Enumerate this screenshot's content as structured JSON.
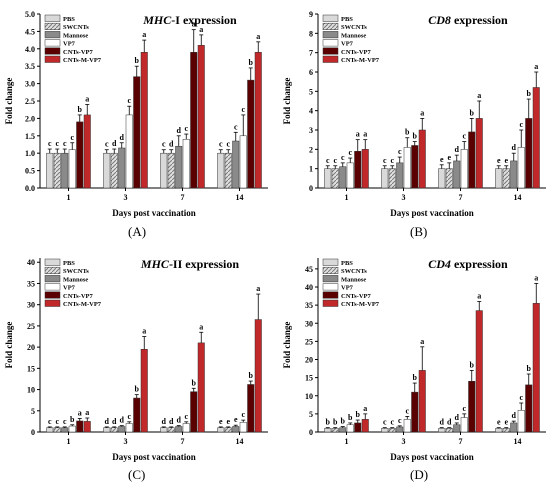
{
  "colors": {
    "PBS": "#d9d9d9",
    "SWCNTs": "#c8c8c8",
    "Mannose": "#8a8a8a",
    "VP7": "#ffffff",
    "CNTs-VP7": "#5a0000",
    "CNTs-M-VP7": "#c0282a",
    "CNTs-VP7_CD4": "#7a0000"
  },
  "legend_patterns": {
    "SWCNTs": "hatch"
  },
  "panels": [
    {
      "label": "(A)"
    },
    {
      "label": "(B)"
    },
    {
      "label": "(C)"
    },
    {
      "label": "(D)"
    }
  ],
  "chart_data": [
    {
      "type": "bar",
      "title_italic": "MHC",
      "title_rest": "-I expression",
      "xlabel": "Days post vaccination",
      "ylabel": "Fold change",
      "categories": [
        "1",
        "3",
        "7",
        "14"
      ],
      "ylim": [
        0,
        5
      ],
      "yticks": [
        "0.0",
        "0.5",
        "1.0",
        "1.5",
        "2.0",
        "2.5",
        "3.0",
        "3.5",
        "4.0",
        "4.5",
        "5.0"
      ],
      "legend_position": "top-left",
      "series": [
        {
          "name": "PBS",
          "values": [
            1.0,
            1.0,
            1.0,
            1.0
          ],
          "errors": [
            0.12,
            0.1,
            0.1,
            0.1
          ],
          "letters": [
            "c",
            "c",
            "c",
            "c"
          ]
        },
        {
          "name": "SWCNTs",
          "values": [
            1.0,
            1.0,
            1.0,
            1.0
          ],
          "errors": [
            0.12,
            0.12,
            0.1,
            0.1
          ],
          "letters": [
            "c",
            "d",
            "d",
            "c"
          ]
        },
        {
          "name": "Mannose",
          "values": [
            1.0,
            1.15,
            1.2,
            1.35
          ],
          "errors": [
            0.12,
            0.15,
            0.3,
            0.25
          ],
          "letters": [
            "c",
            "d",
            "d",
            "c"
          ]
        },
        {
          "name": "VP7",
          "values": [
            1.1,
            2.1,
            1.4,
            1.5
          ],
          "errors": [
            0.2,
            0.25,
            0.15,
            0.6
          ],
          "letters": [
            "c",
            "c",
            "c",
            "c"
          ]
        },
        {
          "name": "CNTs-VP7",
          "values": [
            1.9,
            3.2,
            3.9,
            3.1
          ],
          "errors": [
            0.2,
            0.3,
            0.65,
            0.35
          ],
          "letters": [
            "b",
            "b",
            "a",
            "b"
          ]
        },
        {
          "name": "CNTs-M-VP7",
          "values": [
            2.1,
            3.9,
            4.1,
            3.9
          ],
          "errors": [
            0.3,
            0.35,
            0.3,
            0.3
          ],
          "letters": [
            "a",
            "a",
            "a",
            "a"
          ]
        }
      ]
    },
    {
      "type": "bar",
      "title_italic": "CD8",
      "title_rest": " expression",
      "xlabel": "Days post vaccination",
      "ylabel": "Fold change",
      "categories": [
        "1",
        "3",
        "7",
        "14"
      ],
      "ylim": [
        0,
        9
      ],
      "yticks": [
        "0",
        "1",
        "2",
        "3",
        "4",
        "5",
        "6",
        "7",
        "8",
        "9"
      ],
      "legend_position": "top-left",
      "series": [
        {
          "name": "PBS",
          "values": [
            1.0,
            1.0,
            1.0,
            1.0
          ],
          "errors": [
            0.15,
            0.15,
            0.2,
            0.15
          ],
          "letters": [
            "c",
            "c",
            "e",
            "e"
          ]
        },
        {
          "name": "SWCNTs",
          "values": [
            1.0,
            1.0,
            1.0,
            1.0
          ],
          "errors": [
            0.15,
            0.15,
            0.3,
            0.15
          ],
          "letters": [
            "c",
            "c",
            "e",
            "e"
          ]
        },
        {
          "name": "Mannose",
          "values": [
            1.1,
            1.3,
            1.4,
            1.4
          ],
          "errors": [
            0.2,
            0.3,
            0.3,
            0.4
          ],
          "letters": [
            "c",
            "c",
            "d",
            "d"
          ]
        },
        {
          "name": "VP7",
          "values": [
            1.3,
            2.1,
            2.0,
            2.1
          ],
          "errors": [
            0.25,
            0.5,
            0.4,
            0.9
          ],
          "letters": [
            "c",
            "b",
            "c",
            "c"
          ]
        },
        {
          "name": "CNTs-VP7",
          "values": [
            1.9,
            2.2,
            2.9,
            3.6
          ],
          "errors": [
            0.6,
            0.2,
            0.7,
            1.0
          ],
          "letters": [
            "a",
            "b",
            "b",
            "b"
          ]
        },
        {
          "name": "CNTs-M-VP7",
          "values": [
            2.0,
            3.0,
            3.6,
            5.2
          ],
          "errors": [
            0.5,
            0.6,
            0.9,
            0.8
          ],
          "letters": [
            "a",
            "a",
            "a",
            "a"
          ]
        }
      ]
    },
    {
      "type": "bar",
      "title_italic": "MHC",
      "title_rest": "-II expression",
      "xlabel": "Days post vaccination",
      "ylabel": "Fold change",
      "categories": [
        "1",
        "3",
        "7",
        "14"
      ],
      "ylim": [
        0,
        41
      ],
      "yticks": [
        "0",
        "5",
        "10",
        "15",
        "20",
        "25",
        "30",
        "35",
        "40"
      ],
      "legend_position": "top-left",
      "series": [
        {
          "name": "PBS",
          "values": [
            1.0,
            1.0,
            1.0,
            1.0
          ],
          "errors": [
            0.2,
            0.2,
            0.2,
            0.2
          ],
          "letters": [
            "c",
            "d",
            "d",
            "e"
          ]
        },
        {
          "name": "SWCNTs",
          "values": [
            1.0,
            1.0,
            1.0,
            1.0
          ],
          "errors": [
            0.2,
            0.2,
            0.2,
            0.2
          ],
          "letters": [
            "c",
            "d",
            "d",
            "e"
          ]
        },
        {
          "name": "Mannose",
          "values": [
            1.0,
            1.3,
            1.3,
            1.3
          ],
          "errors": [
            0.2,
            0.2,
            0.2,
            0.3
          ],
          "letters": [
            "c",
            "d",
            "d",
            "e"
          ]
        },
        {
          "name": "VP7",
          "values": [
            1.4,
            2.0,
            2.0,
            2.3
          ],
          "errors": [
            0.3,
            0.4,
            0.4,
            0.5
          ],
          "letters": [
            "b",
            "c",
            "c",
            "c"
          ]
        },
        {
          "name": "CNTs-VP7",
          "values": [
            2.6,
            8.0,
            9.5,
            11.2
          ],
          "errors": [
            0.6,
            0.8,
            0.8,
            0.8
          ],
          "letters": [
            "a",
            "b",
            "b",
            "b"
          ]
        },
        {
          "name": "CNTs-M-VP7",
          "values": [
            2.5,
            19.5,
            21.0,
            26.5
          ],
          "errors": [
            0.8,
            3.0,
            2.5,
            6.0
          ],
          "letters": [
            "a",
            "a",
            "a",
            "a"
          ]
        }
      ]
    },
    {
      "type": "bar",
      "title_italic": "CD4",
      "title_rest": " expression",
      "xlabel": "Days post vaccination",
      "ylabel": "Fold change",
      "categories": [
        "1",
        "3",
        "7",
        "14"
      ],
      "ylim": [
        0,
        48
      ],
      "yticks": [
        "0",
        "5",
        "10",
        "15",
        "20",
        "25",
        "30",
        "35",
        "40",
        "45"
      ],
      "legend_position": "top-left",
      "series": [
        {
          "name": "PBS",
          "values": [
            1.0,
            1.0,
            1.0,
            1.0
          ],
          "errors": [
            0.2,
            0.2,
            0.2,
            0.2
          ],
          "letters": [
            "b",
            "c",
            "d",
            "e"
          ]
        },
        {
          "name": "SWCNTs",
          "values": [
            1.0,
            1.0,
            1.0,
            1.0
          ],
          "errors": [
            0.2,
            0.2,
            0.2,
            0.2
          ],
          "letters": [
            "b",
            "c",
            "d",
            "e"
          ]
        },
        {
          "name": "Mannose",
          "values": [
            1.2,
            1.4,
            2.0,
            2.5
          ],
          "errors": [
            0.3,
            0.3,
            0.5,
            0.5
          ],
          "letters": [
            "b",
            "c",
            "d",
            "d"
          ]
        },
        {
          "name": "VP7",
          "values": [
            2.0,
            3.5,
            4.0,
            6.0
          ],
          "errors": [
            0.5,
            0.8,
            1.0,
            2.0
          ],
          "letters": [
            "b",
            "c",
            "c",
            "c"
          ]
        },
        {
          "name": "CNTs-VP7",
          "values": [
            2.5,
            11.0,
            14.0,
            13.0
          ],
          "errors": [
            0.8,
            2.5,
            3.0,
            3.0
          ],
          "letters": [
            "b",
            "b",
            "b",
            "b"
          ]
        },
        {
          "name": "CNTs-M-VP7",
          "values": [
            3.5,
            17.0,
            33.5,
            35.5
          ],
          "errors": [
            1.5,
            6.5,
            2.5,
            5.5
          ],
          "letters": [
            "a",
            "a",
            "a",
            "a"
          ]
        }
      ]
    }
  ]
}
